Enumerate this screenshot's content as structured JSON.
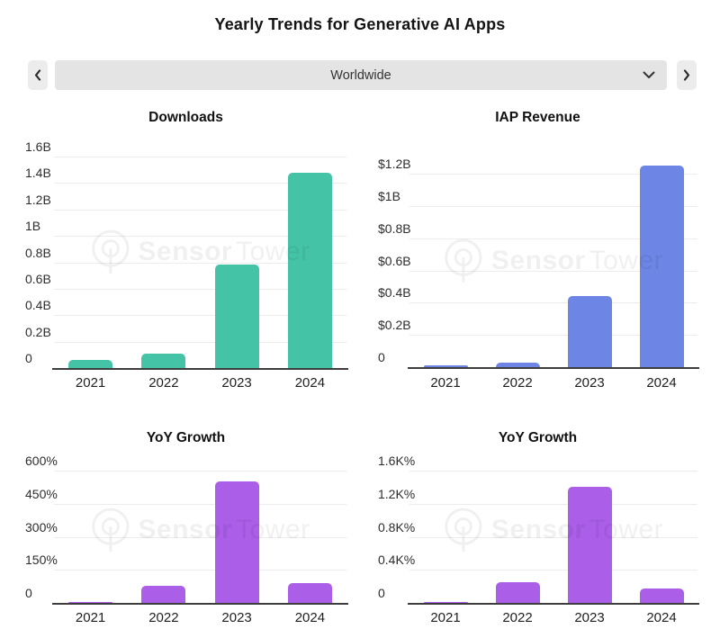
{
  "page": {
    "title": "Yearly Trends for Generative AI Apps"
  },
  "selector": {
    "value": "Worldwide",
    "prev_icon": "chevron-left",
    "next_icon": "chevron-right",
    "dropdown_icon": "chevron-down"
  },
  "watermark": {
    "brand_bold": "Sensor",
    "brand_light": "Tower",
    "logo_icon": "sensor-tower-circle-logo"
  },
  "colors": {
    "downloads_bar": "#45c3a6",
    "revenue_bar": "#6d85e4",
    "growth_bar": "#ab5ee8",
    "axis": "#3d3d3d",
    "gridline": "#ececec",
    "control_button_bg": "#ececec",
    "dropdown_bg": "#e4e4e4"
  },
  "chart_data": [
    {
      "type": "bar",
      "title": "Downloads",
      "categories": [
        "2021",
        "2022",
        "2023",
        "2024"
      ],
      "values": [
        0.06,
        0.11,
        0.78,
        1.48
      ],
      "unit": "billions of downloads",
      "y_ticks": [
        "1.6B",
        "1.4B",
        "1.2B",
        "1B",
        "0.8B",
        "0.6B",
        "0.4B",
        "0.2B",
        "0"
      ],
      "y_top": 1.6,
      "ylim": [
        0,
        1.6
      ],
      "grid": true,
      "color": "#45c3a6"
    },
    {
      "type": "bar",
      "title": "IAP Revenue",
      "categories": [
        "2021",
        "2022",
        "2023",
        "2024"
      ],
      "values": [
        0.01,
        0.03,
        0.44,
        1.25
      ],
      "unit": "billions USD",
      "y_ticks": [
        "$1.2B",
        "$1B",
        "$0.8B",
        "$0.6B",
        "$0.4B",
        "$0.2B",
        "0"
      ],
      "y_top": 1.2,
      "ylim": [
        0,
        1.2
      ],
      "grid": true,
      "color": "#6d85e4"
    },
    {
      "type": "bar",
      "title": "YoY Growth",
      "categories": [
        "2021",
        "2022",
        "2023",
        "2024"
      ],
      "values": [
        5,
        78,
        550,
        90
      ],
      "unit": "percent (downloads growth)",
      "y_ticks": [
        "600%",
        "450%",
        "300%",
        "150%",
        "0"
      ],
      "y_top": 600,
      "ylim": [
        0,
        600
      ],
      "grid": true,
      "color": "#ab5ee8"
    },
    {
      "type": "bar",
      "title": "YoY Growth",
      "categories": [
        "2021",
        "2022",
        "2023",
        "2024"
      ],
      "values": [
        15,
        250,
        1400,
        175
      ],
      "unit": "percent (revenue growth, K = thousand)",
      "y_ticks": [
        "1.6K%",
        "1.2K%",
        "0.8K%",
        "0.4K%",
        "0"
      ],
      "y_top": 1600,
      "ylim": [
        0,
        1600
      ],
      "grid": true,
      "color": "#ab5ee8"
    }
  ]
}
